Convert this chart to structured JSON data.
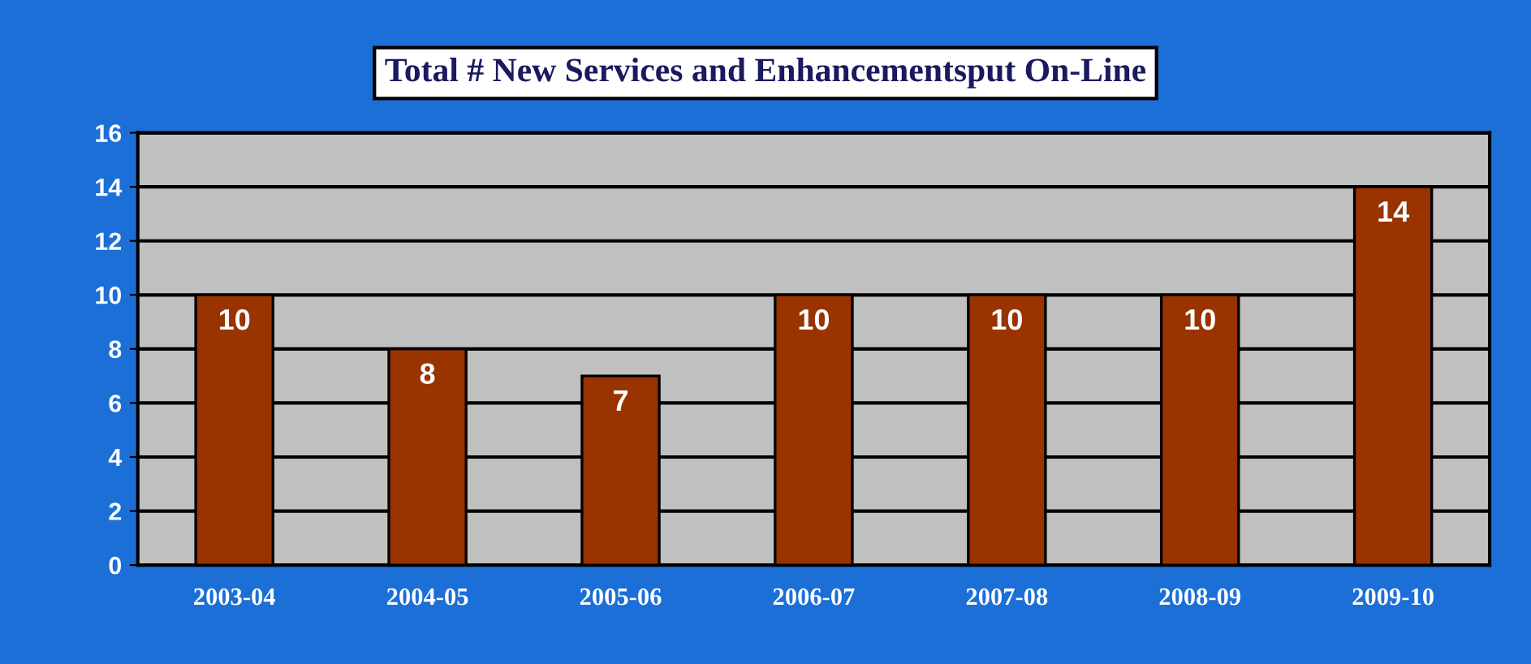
{
  "chart_data": {
    "type": "bar",
    "title": "Total # New Services and Enhancementsput On-Line",
    "categories": [
      "2003-04",
      "2004-05",
      "2005-06",
      "2006-07",
      "2007-08",
      "2008-09",
      "2009-10"
    ],
    "values": [
      10,
      8,
      7,
      10,
      10,
      10,
      14
    ],
    "color": "#993300",
    "ylim": [
      0,
      16
    ],
    "yticks": [
      0,
      2,
      4,
      6,
      8,
      10,
      12,
      14,
      16
    ],
    "grid": "y",
    "data_labels": true
  }
}
